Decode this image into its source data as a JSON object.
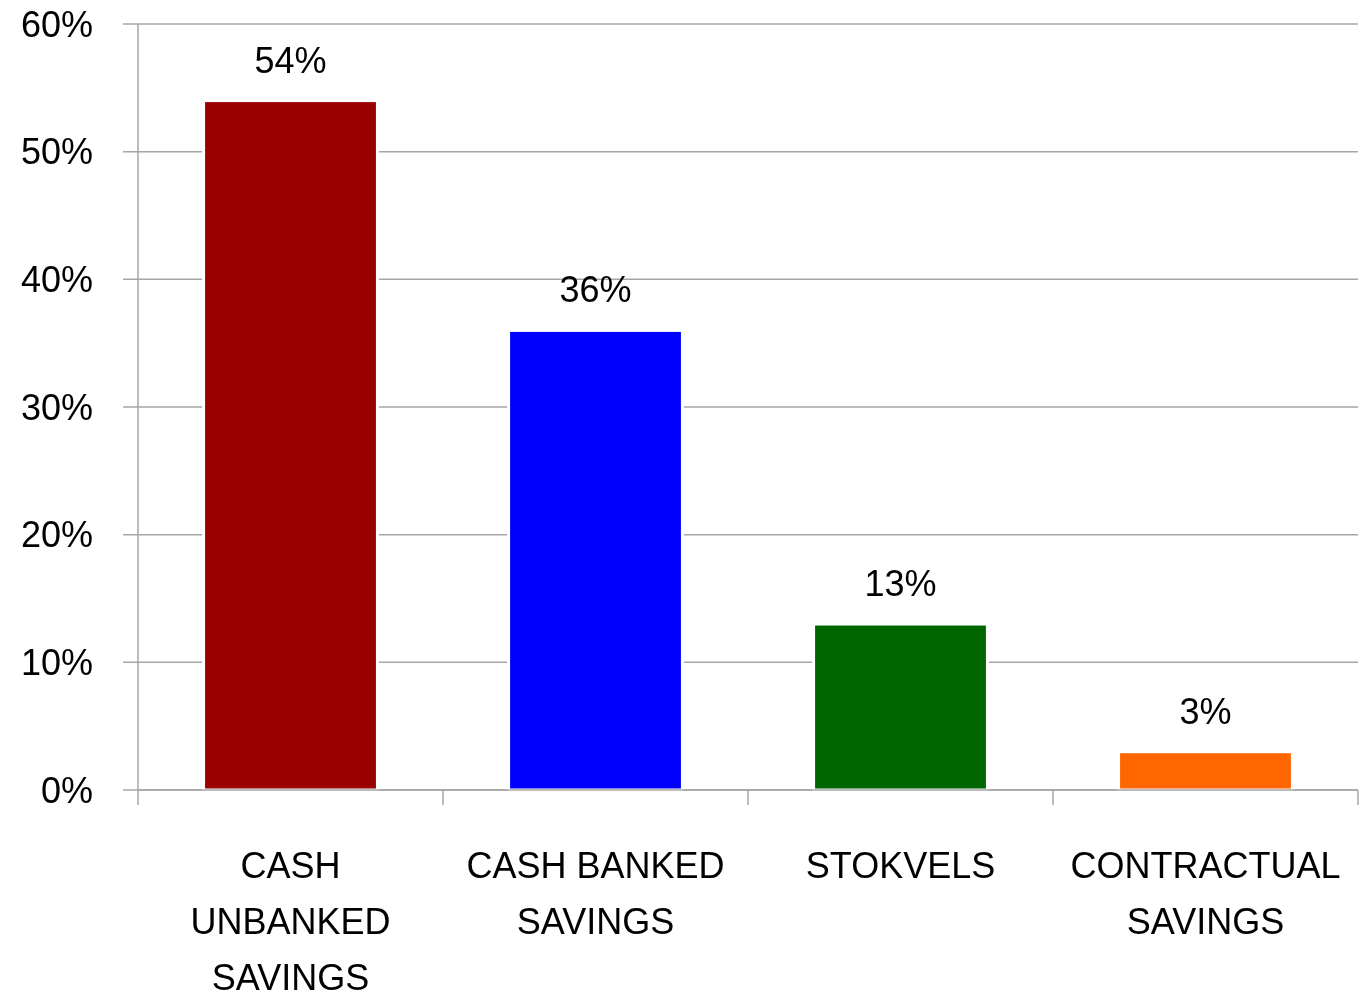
{
  "chart_data": {
    "type": "bar",
    "categories": [
      "CASH UNBANKED SAVINGS",
      "CASH BANKED SAVINGS",
      "STOKVELS",
      "CONTRACTUAL SAVINGS"
    ],
    "values": [
      54,
      36,
      13,
      3
    ],
    "colors": [
      "#990000",
      "#0000ff",
      "#006600",
      "#ff6600"
    ],
    "value_labels": [
      "54%",
      "36%",
      "13%",
      "3%"
    ],
    "ylim": [
      0,
      60
    ],
    "yticks": [
      {
        "value": 0,
        "label": "0%"
      },
      {
        "value": 10,
        "label": "10%"
      },
      {
        "value": 20,
        "label": "20%"
      },
      {
        "value": 30,
        "label": "30%"
      },
      {
        "value": 40,
        "label": "40%"
      },
      {
        "value": 50,
        "label": "50%"
      },
      {
        "value": 60,
        "label": "60%"
      }
    ],
    "grid": "y"
  }
}
